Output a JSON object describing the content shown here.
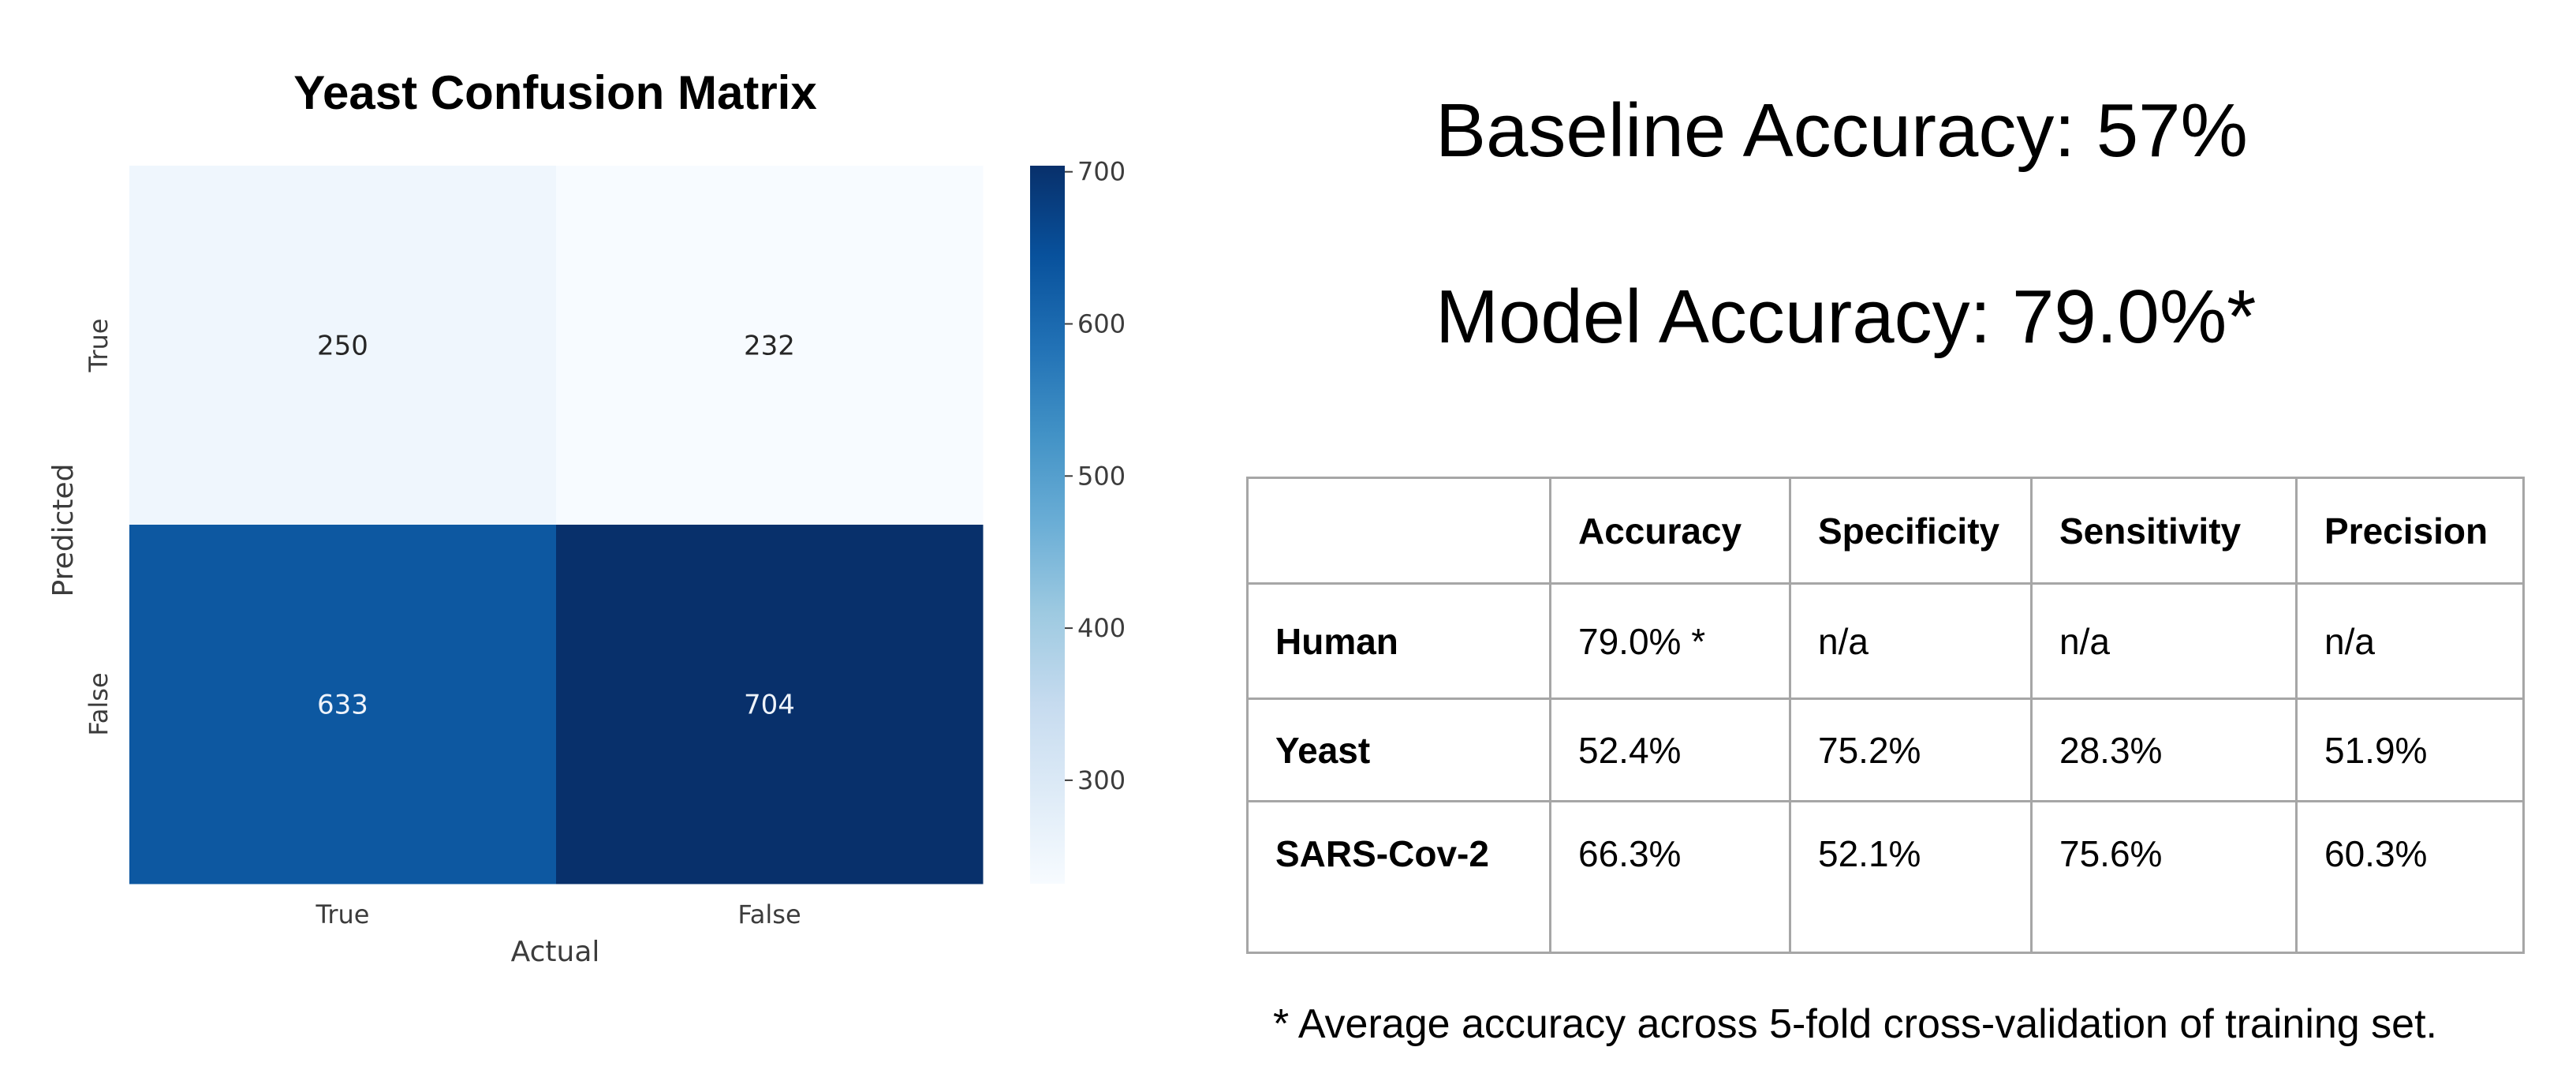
{
  "chart_data": {
    "type": "heatmap",
    "title": "Yeast Confusion Matrix",
    "xlabel": "Actual",
    "ylabel": "Predicted",
    "x_categories": [
      "True",
      "False"
    ],
    "y_categories": [
      "True",
      "False"
    ],
    "values": [
      [
        250,
        232
      ],
      [
        633,
        704
      ]
    ],
    "colorbar": {
      "ticks": [
        "700",
        "600",
        "500",
        "400",
        "300"
      ],
      "min": 232,
      "max": 704,
      "colormap": "Blues"
    }
  },
  "baseline": "Baseline Accuracy: 57%",
  "model": "Model Accuracy: 79.0%*",
  "metrics_table": {
    "headers": [
      "",
      "Accuracy",
      "Specificity",
      "Sensitivity",
      "Precision"
    ],
    "rows": [
      {
        "label": "Human",
        "cells": [
          "79.0% *",
          "n/a",
          "n/a",
          "n/a"
        ]
      },
      {
        "label": "Yeast",
        "cells": [
          "52.4%",
          "75.2%",
          "28.3%",
          "51.9%"
        ]
      },
      {
        "label": "SARS-Cov-2",
        "cells": [
          "66.3%",
          "52.1%",
          "75.6%",
          "60.3%"
        ]
      }
    ]
  },
  "footnote": "* Average accuracy across 5-fold cross-validation of training set.",
  "colors": {
    "cmap_low": "#f7fbff",
    "cmap_high": "#08306b",
    "cell_text_dark": "#262626",
    "cell_text_light": "#eef3fa",
    "axis_text": "#3c3c3c",
    "table_border": "#a6a6a6"
  }
}
